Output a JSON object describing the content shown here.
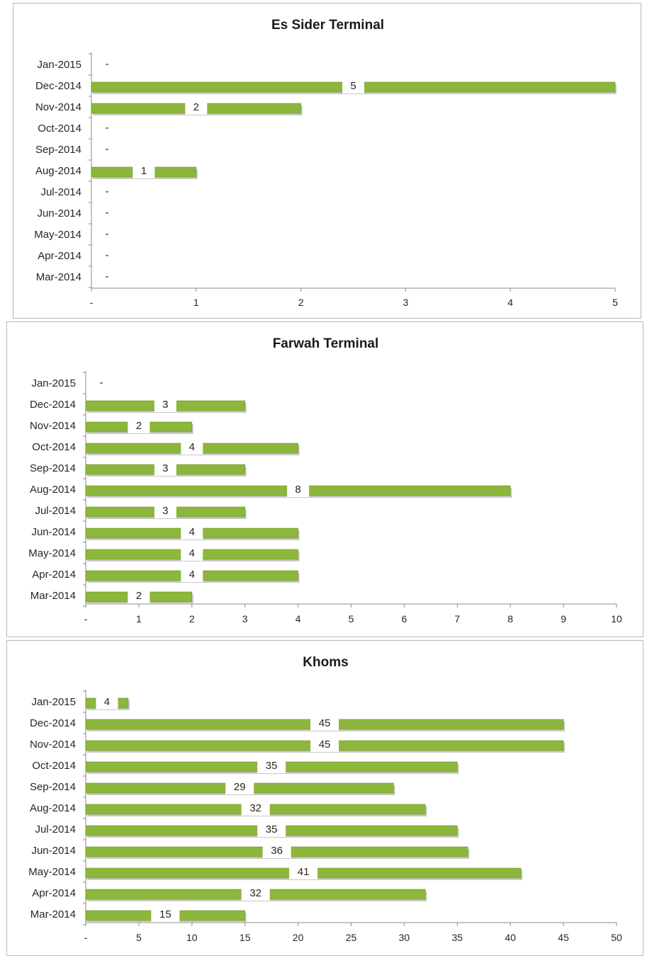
{
  "colors": {
    "bar": "#8cb63c",
    "bar_edge": "#6e9628",
    "bar_shadow": "#c9c9c9",
    "axis": "#8a8a8a",
    "label_bg": "#ffffff"
  },
  "chart_data": [
    {
      "type": "bar",
      "orientation": "horizontal",
      "title": "Es Sider Terminal",
      "categories": [
        "Jan-2015",
        "Dec-2014",
        "Nov-2014",
        "Oct-2014",
        "Sep-2014",
        "Aug-2014",
        "Jul-2014",
        "Jun-2014",
        "May-2014",
        "Apr-2014",
        "Mar-2014"
      ],
      "values": [
        0,
        5,
        2,
        0,
        0,
        1,
        0,
        0,
        0,
        0,
        0
      ],
      "value_labels": [
        "-",
        "5",
        "2",
        "-",
        "-",
        "1",
        "-",
        "-",
        "-",
        "-",
        "-"
      ],
      "xlim": [
        0,
        5
      ],
      "xticks": [
        "-",
        "1",
        "2",
        "3",
        "4",
        "5"
      ],
      "grid": false,
      "legend": "none"
    },
    {
      "type": "bar",
      "orientation": "horizontal",
      "title": "Farwah Terminal",
      "categories": [
        "Jan-2015",
        "Dec-2014",
        "Nov-2014",
        "Oct-2014",
        "Sep-2014",
        "Aug-2014",
        "Jul-2014",
        "Jun-2014",
        "May-2014",
        "Apr-2014",
        "Mar-2014"
      ],
      "values": [
        0,
        3,
        2,
        4,
        3,
        8,
        3,
        4,
        4,
        4,
        2
      ],
      "value_labels": [
        "-",
        "3",
        "2",
        "4",
        "3",
        "8",
        "3",
        "4",
        "4",
        "4",
        "2"
      ],
      "xlim": [
        0,
        10
      ],
      "xticks": [
        "-",
        "1",
        "2",
        "3",
        "4",
        "5",
        "6",
        "7",
        "8",
        "9",
        "10"
      ],
      "grid": false,
      "legend": "none"
    },
    {
      "type": "bar",
      "orientation": "horizontal",
      "title": "Khoms",
      "categories": [
        "Jan-2015",
        "Dec-2014",
        "Nov-2014",
        "Oct-2014",
        "Sep-2014",
        "Aug-2014",
        "Jul-2014",
        "Jun-2014",
        "May-2014",
        "Apr-2014",
        "Mar-2014"
      ],
      "values": [
        4,
        45,
        45,
        35,
        29,
        32,
        35,
        36,
        41,
        32,
        15
      ],
      "value_labels": [
        "4",
        "45",
        "45",
        "35",
        "29",
        "32",
        "35",
        "36",
        "41",
        "32",
        "15"
      ],
      "xlim": [
        0,
        50
      ],
      "xticks": [
        "-",
        "5",
        "10",
        "15",
        "20",
        "25",
        "30",
        "35",
        "40",
        "45",
        "50"
      ],
      "grid": false,
      "legend": "none"
    }
  ]
}
